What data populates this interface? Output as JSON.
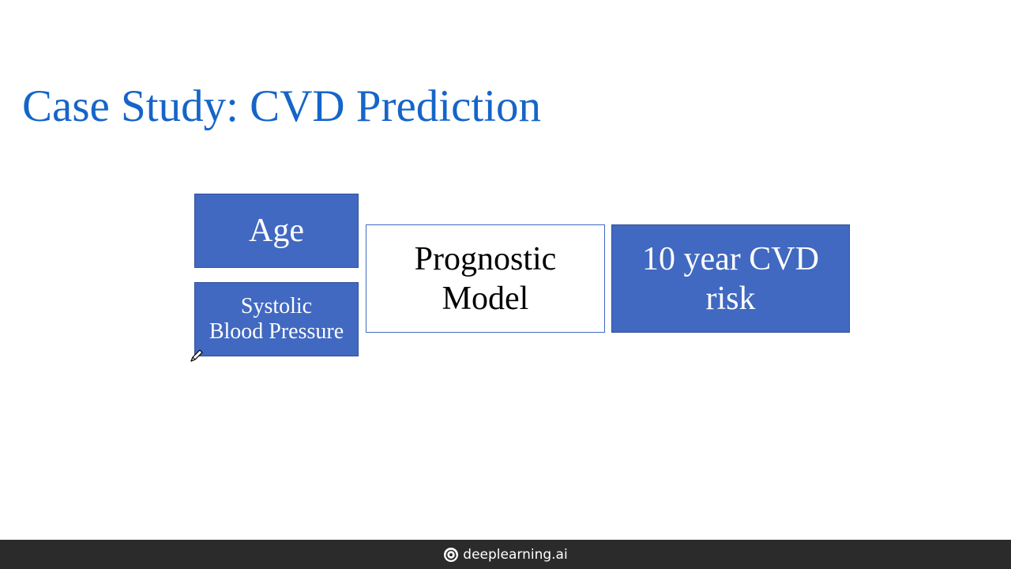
{
  "slide": {
    "title": "Case Study: CVD Prediction",
    "title_color": "#1565c9"
  },
  "diagram": {
    "inputs": [
      {
        "label": "Age"
      },
      {
        "label": "Systolic\nBlood Pressure"
      }
    ],
    "model": {
      "label": "Prognostic\nModel"
    },
    "output": {
      "label": "10 year CVD\nrisk"
    },
    "fill_color": "#4169c1"
  },
  "footer": {
    "brand": "deeplearning.ai",
    "logo_icon": "deeplearning-logo-icon"
  },
  "cursor": {
    "icon": "pen-cursor-icon"
  }
}
